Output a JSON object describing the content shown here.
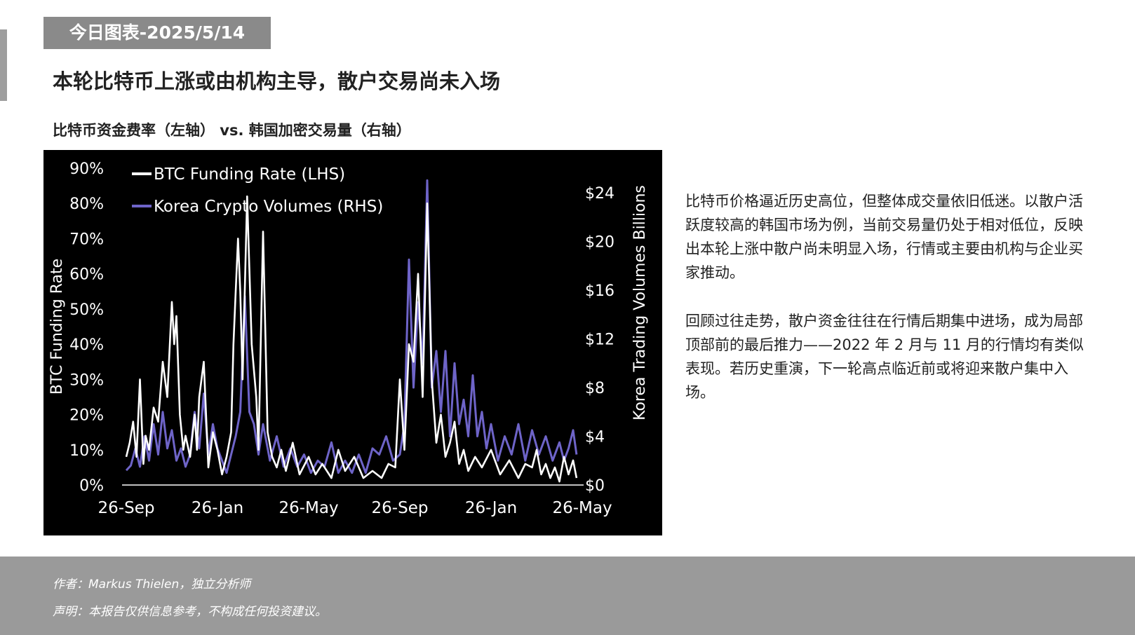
{
  "header": {
    "date_tag": "今日图表-2025/5/14",
    "headline": "本轮比特币上涨或由机构主导，散户交易尚未入场",
    "subtitle": "比特币资金费率（左轴） vs. 韩国加密交易量（右轴）"
  },
  "commentary": {
    "p1": "比特币价格逼近历史高位，但整体成交量依旧低迷。以散户活跃度较高的韩国市场为例，当前交易量仍处于相对低位，反映出本轮上涨中散户尚未明显入场，行情或主要由机构与企业买家推动。",
    "p2": "回顾过往走势，散户资金往往在行情后期集中进场，成为局部顶部前的最后推力——2022 年 2 月与 11 月的行情均有类似表现。若历史重演，下一轮高点临近前或将迎来散户集中入场。"
  },
  "footer": {
    "author_label": "作者：",
    "author": "Markus Thielen，独立分析师",
    "disclaimer_label": "声明：",
    "disclaimer": "本报告仅供信息参考，不构成任何投资建议。"
  },
  "colors": {
    "chart_background": "#000000",
    "funding_line": "#ffffff",
    "volume_line": "#6e64c8",
    "header_gray": "#8a8a8a",
    "footer_gray": "#9a9a9a"
  },
  "chart_data": {
    "type": "line",
    "title": "比特币资金费率（左轴） vs. 韩国加密交易量（右轴）",
    "x_tick_labels": [
      "26-Sep",
      "26-Jan",
      "26-May",
      "26-Sep",
      "26-Jan",
      "26-May"
    ],
    "x_range_months": [
      0,
      20
    ],
    "y_left": {
      "label": "BTC Funding Rate",
      "unit": "%",
      "range": [
        0,
        90
      ],
      "ticks": [
        0,
        10,
        20,
        30,
        40,
        50,
        60,
        70,
        80,
        90
      ]
    },
    "y_right": {
      "label": "Korea Trading  Volumes Billions",
      "unit": "$B",
      "range": [
        0,
        26
      ],
      "ticks": [
        0,
        4,
        8,
        12,
        16,
        20,
        24
      ]
    },
    "legend": {
      "placement": "top-left"
    },
    "grid": false,
    "series": [
      {
        "name": "BTC Funding Rate (LHS)",
        "axis": "left",
        "color": "#ffffff",
        "x": [
          0.0,
          0.15,
          0.3,
          0.45,
          0.6,
          0.75,
          0.85,
          1.0,
          1.2,
          1.4,
          1.6,
          1.8,
          2.0,
          2.1,
          2.2,
          2.35,
          2.5,
          2.6,
          2.8,
          3.0,
          3.1,
          3.2,
          3.4,
          3.6,
          3.8,
          4.0,
          4.2,
          4.4,
          4.6,
          4.7,
          4.8,
          4.9,
          5.0,
          5.1,
          5.3,
          5.5,
          5.7,
          5.8,
          6.0,
          6.2,
          6.4,
          6.6,
          6.8,
          7.0,
          7.3,
          7.6,
          8.0,
          8.3,
          8.6,
          9.0,
          9.3,
          9.6,
          10.0,
          10.4,
          10.8,
          11.2,
          11.5,
          11.8,
          12.0,
          12.2,
          12.4,
          12.6,
          12.8,
          13.0,
          13.2,
          13.4,
          13.6,
          13.8,
          14.0,
          14.2,
          14.4,
          14.6,
          14.8,
          15.0,
          15.3,
          15.6,
          16.0,
          16.4,
          16.8,
          17.2,
          17.5,
          17.8,
          18.0,
          18.2,
          18.4,
          18.6,
          18.8,
          19.0,
          19.2,
          19.4,
          19.6,
          19.75
        ],
        "y": [
          8,
          12,
          18,
          8,
          30,
          6,
          14,
          10,
          22,
          18,
          35,
          25,
          52,
          40,
          48,
          20,
          10,
          14,
          8,
          20,
          10,
          25,
          35,
          5,
          15,
          10,
          3,
          8,
          15,
          40,
          55,
          70,
          55,
          30,
          82,
          40,
          25,
          10,
          72,
          15,
          8,
          5,
          10,
          4,
          12,
          3,
          8,
          3,
          6,
          2,
          10,
          4,
          8,
          2,
          4,
          2,
          6,
          5,
          30,
          10,
          40,
          35,
          60,
          25,
          80,
          30,
          12,
          20,
          8,
          12,
          18,
          6,
          10,
          4,
          8,
          5,
          10,
          3,
          7,
          2,
          6,
          5,
          10,
          3,
          6,
          2,
          5,
          1,
          8,
          3,
          7,
          2
        ]
      },
      {
        "name": "Korea Crypto Volumes (RHS)",
        "axis": "right",
        "color": "#6e64c8",
        "x": [
          0.0,
          0.2,
          0.4,
          0.6,
          0.8,
          1.0,
          1.2,
          1.4,
          1.6,
          1.8,
          2.0,
          2.2,
          2.4,
          2.6,
          2.8,
          3.0,
          3.2,
          3.4,
          3.6,
          3.8,
          4.0,
          4.2,
          4.4,
          4.6,
          4.8,
          5.0,
          5.2,
          5.4,
          5.6,
          5.8,
          6.0,
          6.3,
          6.6,
          6.9,
          7.2,
          7.5,
          7.8,
          8.1,
          8.4,
          8.7,
          9.0,
          9.3,
          9.6,
          9.9,
          10.2,
          10.5,
          10.8,
          11.1,
          11.4,
          11.7,
          12.0,
          12.2,
          12.4,
          12.6,
          12.8,
          13.0,
          13.2,
          13.4,
          13.6,
          13.8,
          14.0,
          14.2,
          14.4,
          14.6,
          14.8,
          15.0,
          15.2,
          15.4,
          15.6,
          15.8,
          16.0,
          16.3,
          16.6,
          16.9,
          17.2,
          17.5,
          17.8,
          18.1,
          18.4,
          18.7,
          19.0,
          19.2,
          19.4,
          19.6,
          19.75
        ],
        "y": [
          1.2,
          1.6,
          3.0,
          1.5,
          4.0,
          2.0,
          5.0,
          2.5,
          6.0,
          3.0,
          4.5,
          2.0,
          3.0,
          1.5,
          2.5,
          6.0,
          3.0,
          7.5,
          2.5,
          5.0,
          3.0,
          2.0,
          1.0,
          2.5,
          4.0,
          6.0,
          15.5,
          6.0,
          5.0,
          2.5,
          5.0,
          2.0,
          4.0,
          1.5,
          3.0,
          1.5,
          2.5,
          1.0,
          2.0,
          1.5,
          3.5,
          1.0,
          2.0,
          1.0,
          2.5,
          1.0,
          3.0,
          2.5,
          4.0,
          2.0,
          2.5,
          5.0,
          18.5,
          8.0,
          15.0,
          10.0,
          25.0,
          8.0,
          11.0,
          6.0,
          11.0,
          4.0,
          10.0,
          5.0,
          7.0,
          4.0,
          9.0,
          4.0,
          6.0,
          3.0,
          5.0,
          2.0,
          4.0,
          2.5,
          5.0,
          2.0,
          4.5,
          2.5,
          4.0,
          2.0,
          3.5,
          2.0,
          3.0,
          4.5,
          2.5
        ]
      }
    ]
  }
}
